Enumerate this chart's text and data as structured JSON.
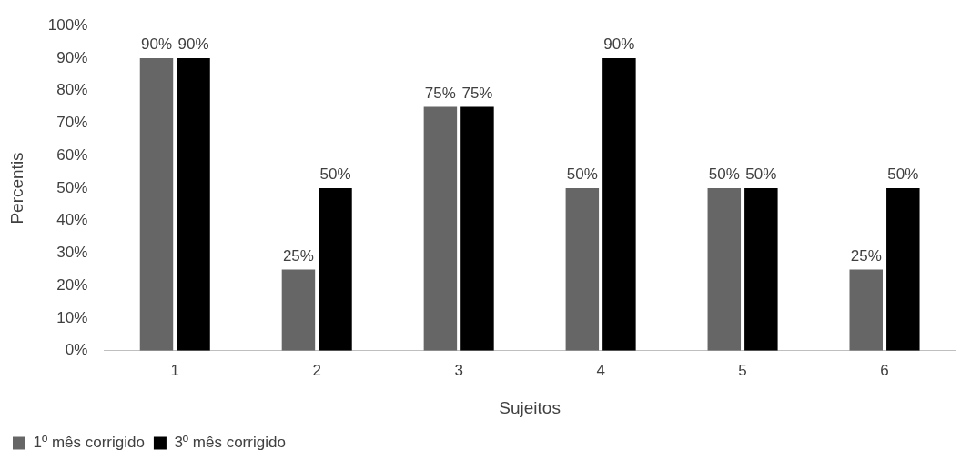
{
  "chart_data": {
    "type": "bar",
    "xlabel": "Sujeitos",
    "ylabel": "Percentis",
    "categories": [
      "1",
      "2",
      "3",
      "4",
      "5",
      "6"
    ],
    "series": [
      {
        "name": "1º mês corrigido",
        "color": "#666666",
        "values": [
          90,
          25,
          75,
          50,
          50,
          25
        ],
        "value_labels": [
          "90%",
          "25%",
          "75%",
          "50%",
          "50%",
          "25%"
        ]
      },
      {
        "name": "3º mês corrigido",
        "color": "#000000",
        "values": [
          90,
          50,
          75,
          90,
          50,
          50
        ],
        "value_labels": [
          "90%",
          "50%",
          "75%",
          "90%",
          "50%",
          "50%"
        ]
      }
    ],
    "ylim": [
      0,
      100
    ],
    "yticks": [
      {
        "value": 0,
        "label": "0%"
      },
      {
        "value": 10,
        "label": "10%"
      },
      {
        "value": 20,
        "label": "20%"
      },
      {
        "value": 30,
        "label": "30%"
      },
      {
        "value": 40,
        "label": "40%"
      },
      {
        "value": 50,
        "label": "50%"
      },
      {
        "value": 60,
        "label": "60%"
      },
      {
        "value": 70,
        "label": "70%"
      },
      {
        "value": 80,
        "label": "80%"
      },
      {
        "value": 90,
        "label": "90%"
      },
      {
        "value": 100,
        "label": "100%"
      }
    ],
    "grid": false,
    "legend": "bottom left"
  }
}
